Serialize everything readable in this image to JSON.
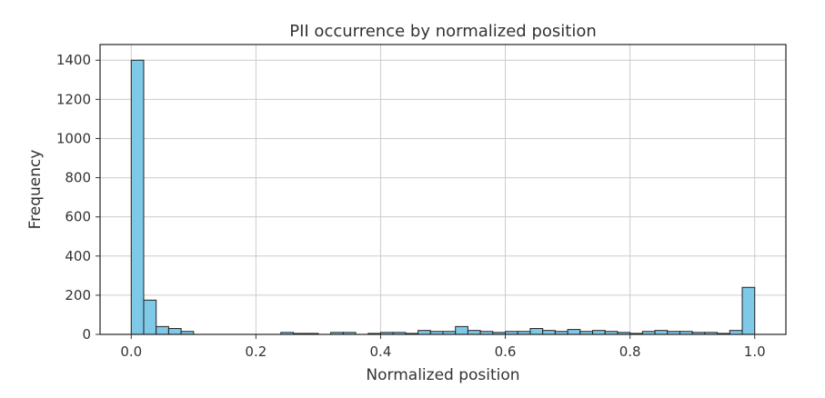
{
  "chart_data": {
    "type": "bar",
    "title": "PII occurrence by normalized position",
    "xlabel": "Normalized position",
    "ylabel": "Frequency",
    "xlim": [
      -0.05,
      1.05
    ],
    "ylim": [
      0,
      1480
    ],
    "x_ticks": [
      0.0,
      0.2,
      0.4,
      0.6,
      0.8,
      1.0
    ],
    "x_tick_labels": [
      "0.0",
      "0.2",
      "0.4",
      "0.6",
      "0.8",
      "1.0"
    ],
    "y_ticks": [
      0,
      200,
      400,
      600,
      800,
      1000,
      1200,
      1400
    ],
    "y_tick_labels": [
      "0",
      "200",
      "400",
      "600",
      "800",
      "1000",
      "1200",
      "1400"
    ],
    "grid": true,
    "bar_color": "#7ec8e8",
    "bar_edge_color": "#222222",
    "bins": {
      "start": 0.0,
      "end": 1.0,
      "count": 50
    },
    "values": [
      1400,
      175,
      40,
      30,
      15,
      0,
      0,
      0,
      0,
      0,
      0,
      0,
      10,
      5,
      5,
      0,
      10,
      10,
      0,
      5,
      10,
      10,
      5,
      20,
      15,
      15,
      40,
      20,
      15,
      10,
      15,
      15,
      30,
      20,
      15,
      25,
      15,
      20,
      15,
      10,
      5,
      15,
      20,
      15,
      15,
      10,
      10,
      5,
      20,
      240
    ]
  }
}
